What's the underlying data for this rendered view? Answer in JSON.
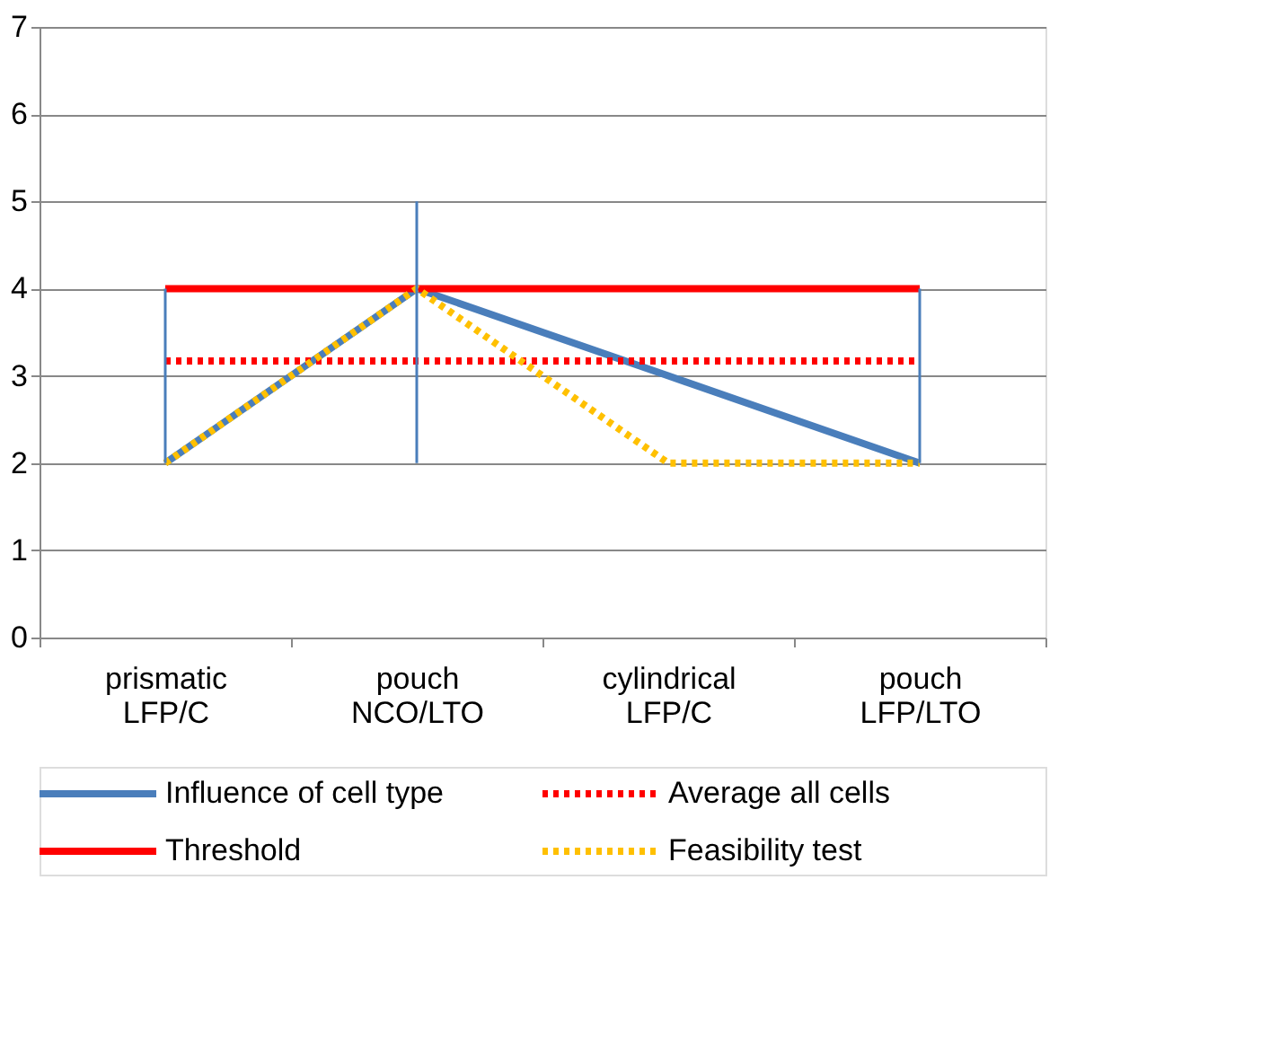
{
  "chart_data": {
    "type": "line",
    "categories": [
      "prismatic\nLFP/C",
      "pouch\nNCO/LTO",
      "cylindrical\nLFP/C",
      "pouch\nLFP/LTO"
    ],
    "series": [
      {
        "name": "Influence of cell type",
        "color": "#4a7ebb",
        "values": [
          2,
          4,
          3,
          2
        ],
        "line_style": "solid",
        "errors": [
          [
            2,
            4
          ],
          [
            2,
            5
          ],
          null,
          [
            2,
            4
          ]
        ]
      },
      {
        "name": "Average all cells",
        "color": "#ff0000",
        "values": [
          3.17,
          3.17,
          3.17,
          3.17
        ],
        "line_style": "dotted"
      },
      {
        "name": "Threshold",
        "color": "#ff0000",
        "values": [
          4,
          4,
          4,
          4
        ],
        "line_style": "solid"
      },
      {
        "name": "Feasibility test",
        "color": "#ffc000",
        "values": [
          2,
          4,
          2,
          2
        ],
        "line_style": "dotted"
      }
    ],
    "ylim": [
      0,
      7
    ],
    "yticks": [
      0,
      1,
      2,
      3,
      4,
      5,
      6,
      7
    ],
    "grid": "y",
    "legend": "bottom",
    "marker": "none"
  }
}
